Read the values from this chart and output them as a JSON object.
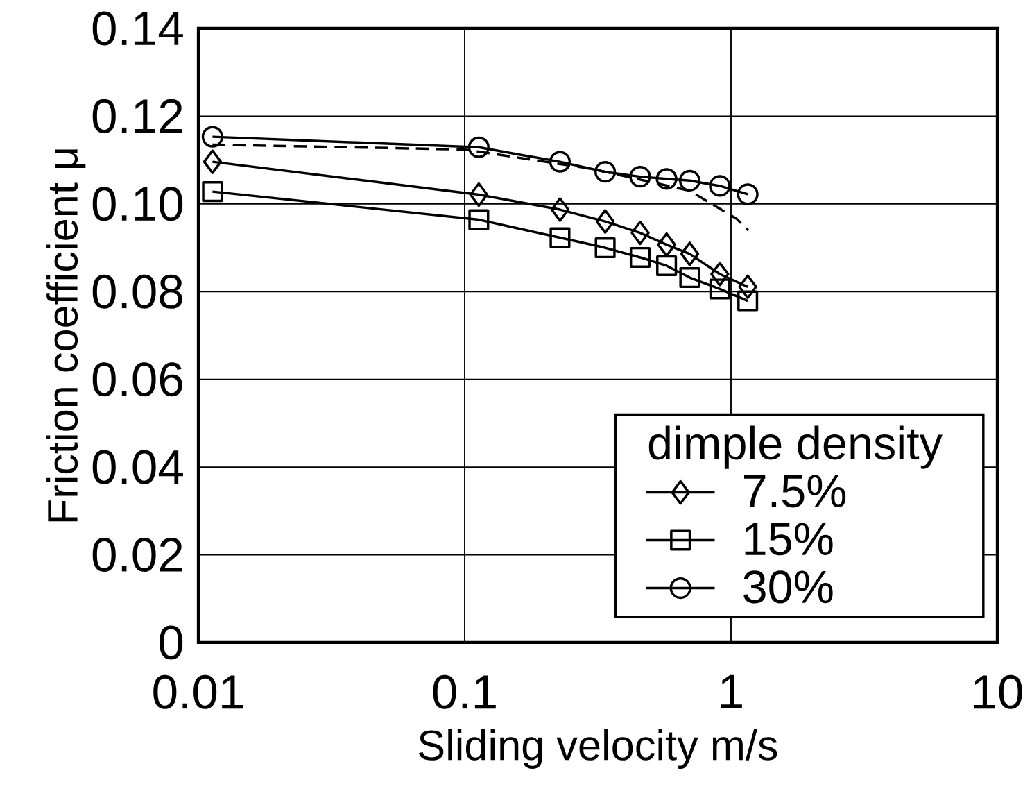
{
  "chart_data": {
    "type": "line",
    "xlabel": "Sliding velocity   m/s",
    "ylabel": "Friction coefficient   μ",
    "legend_title": "dimple density",
    "log": "x",
    "grid": true,
    "legend": "bottom right",
    "xlim": [
      0.01,
      10
    ],
    "ylim": [
      0,
      0.14
    ],
    "xticks": [
      0.01,
      0.1,
      1,
      10
    ],
    "yticks": [
      0,
      0.02,
      0.04,
      0.06,
      0.08,
      {
        "value": 0.1,
        "label": "0.10"
      },
      0.12,
      0.14
    ],
    "series": [
      {
        "name": "7.5%",
        "color": "#000000",
        "marker": "diamond",
        "x": [
          0.0113,
          0.113,
          0.228,
          0.337,
          0.456,
          0.573,
          0.7,
          0.908,
          1.156
        ],
        "values": [
          0.1096,
          0.1021,
          0.0987,
          0.096,
          0.0934,
          0.0907,
          0.0886,
          0.084,
          0.0811
        ]
      },
      {
        "name": "15%",
        "color": "#000000",
        "marker": "square",
        "x": [
          0.0113,
          0.113,
          0.228,
          0.337,
          0.456,
          0.573,
          0.7,
          0.908,
          1.156
        ],
        "values": [
          0.1028,
          0.0964,
          0.0923,
          0.09,
          0.0878,
          0.0859,
          0.0832,
          0.0806,
          0.0779
        ]
      },
      {
        "name": "30%",
        "color": "#000000",
        "marker": "circle",
        "x": [
          0.0113,
          0.113,
          0.228,
          0.337,
          0.456,
          0.573,
          0.7,
          0.908,
          1.156
        ],
        "values": [
          0.1153,
          0.1129,
          0.1096,
          0.1073,
          0.1062,
          0.1057,
          0.1053,
          0.1041,
          0.1022
        ]
      },
      {
        "color": "#000000",
        "marker": "none",
        "line_style": "dashed",
        "x": [
          0.0113,
          0.1,
          0.3,
          0.7,
          1.05,
          1.16
        ],
        "values": [
          0.1135,
          0.1124,
          0.108,
          0.103,
          0.0966,
          0.094
        ]
      }
    ]
  }
}
